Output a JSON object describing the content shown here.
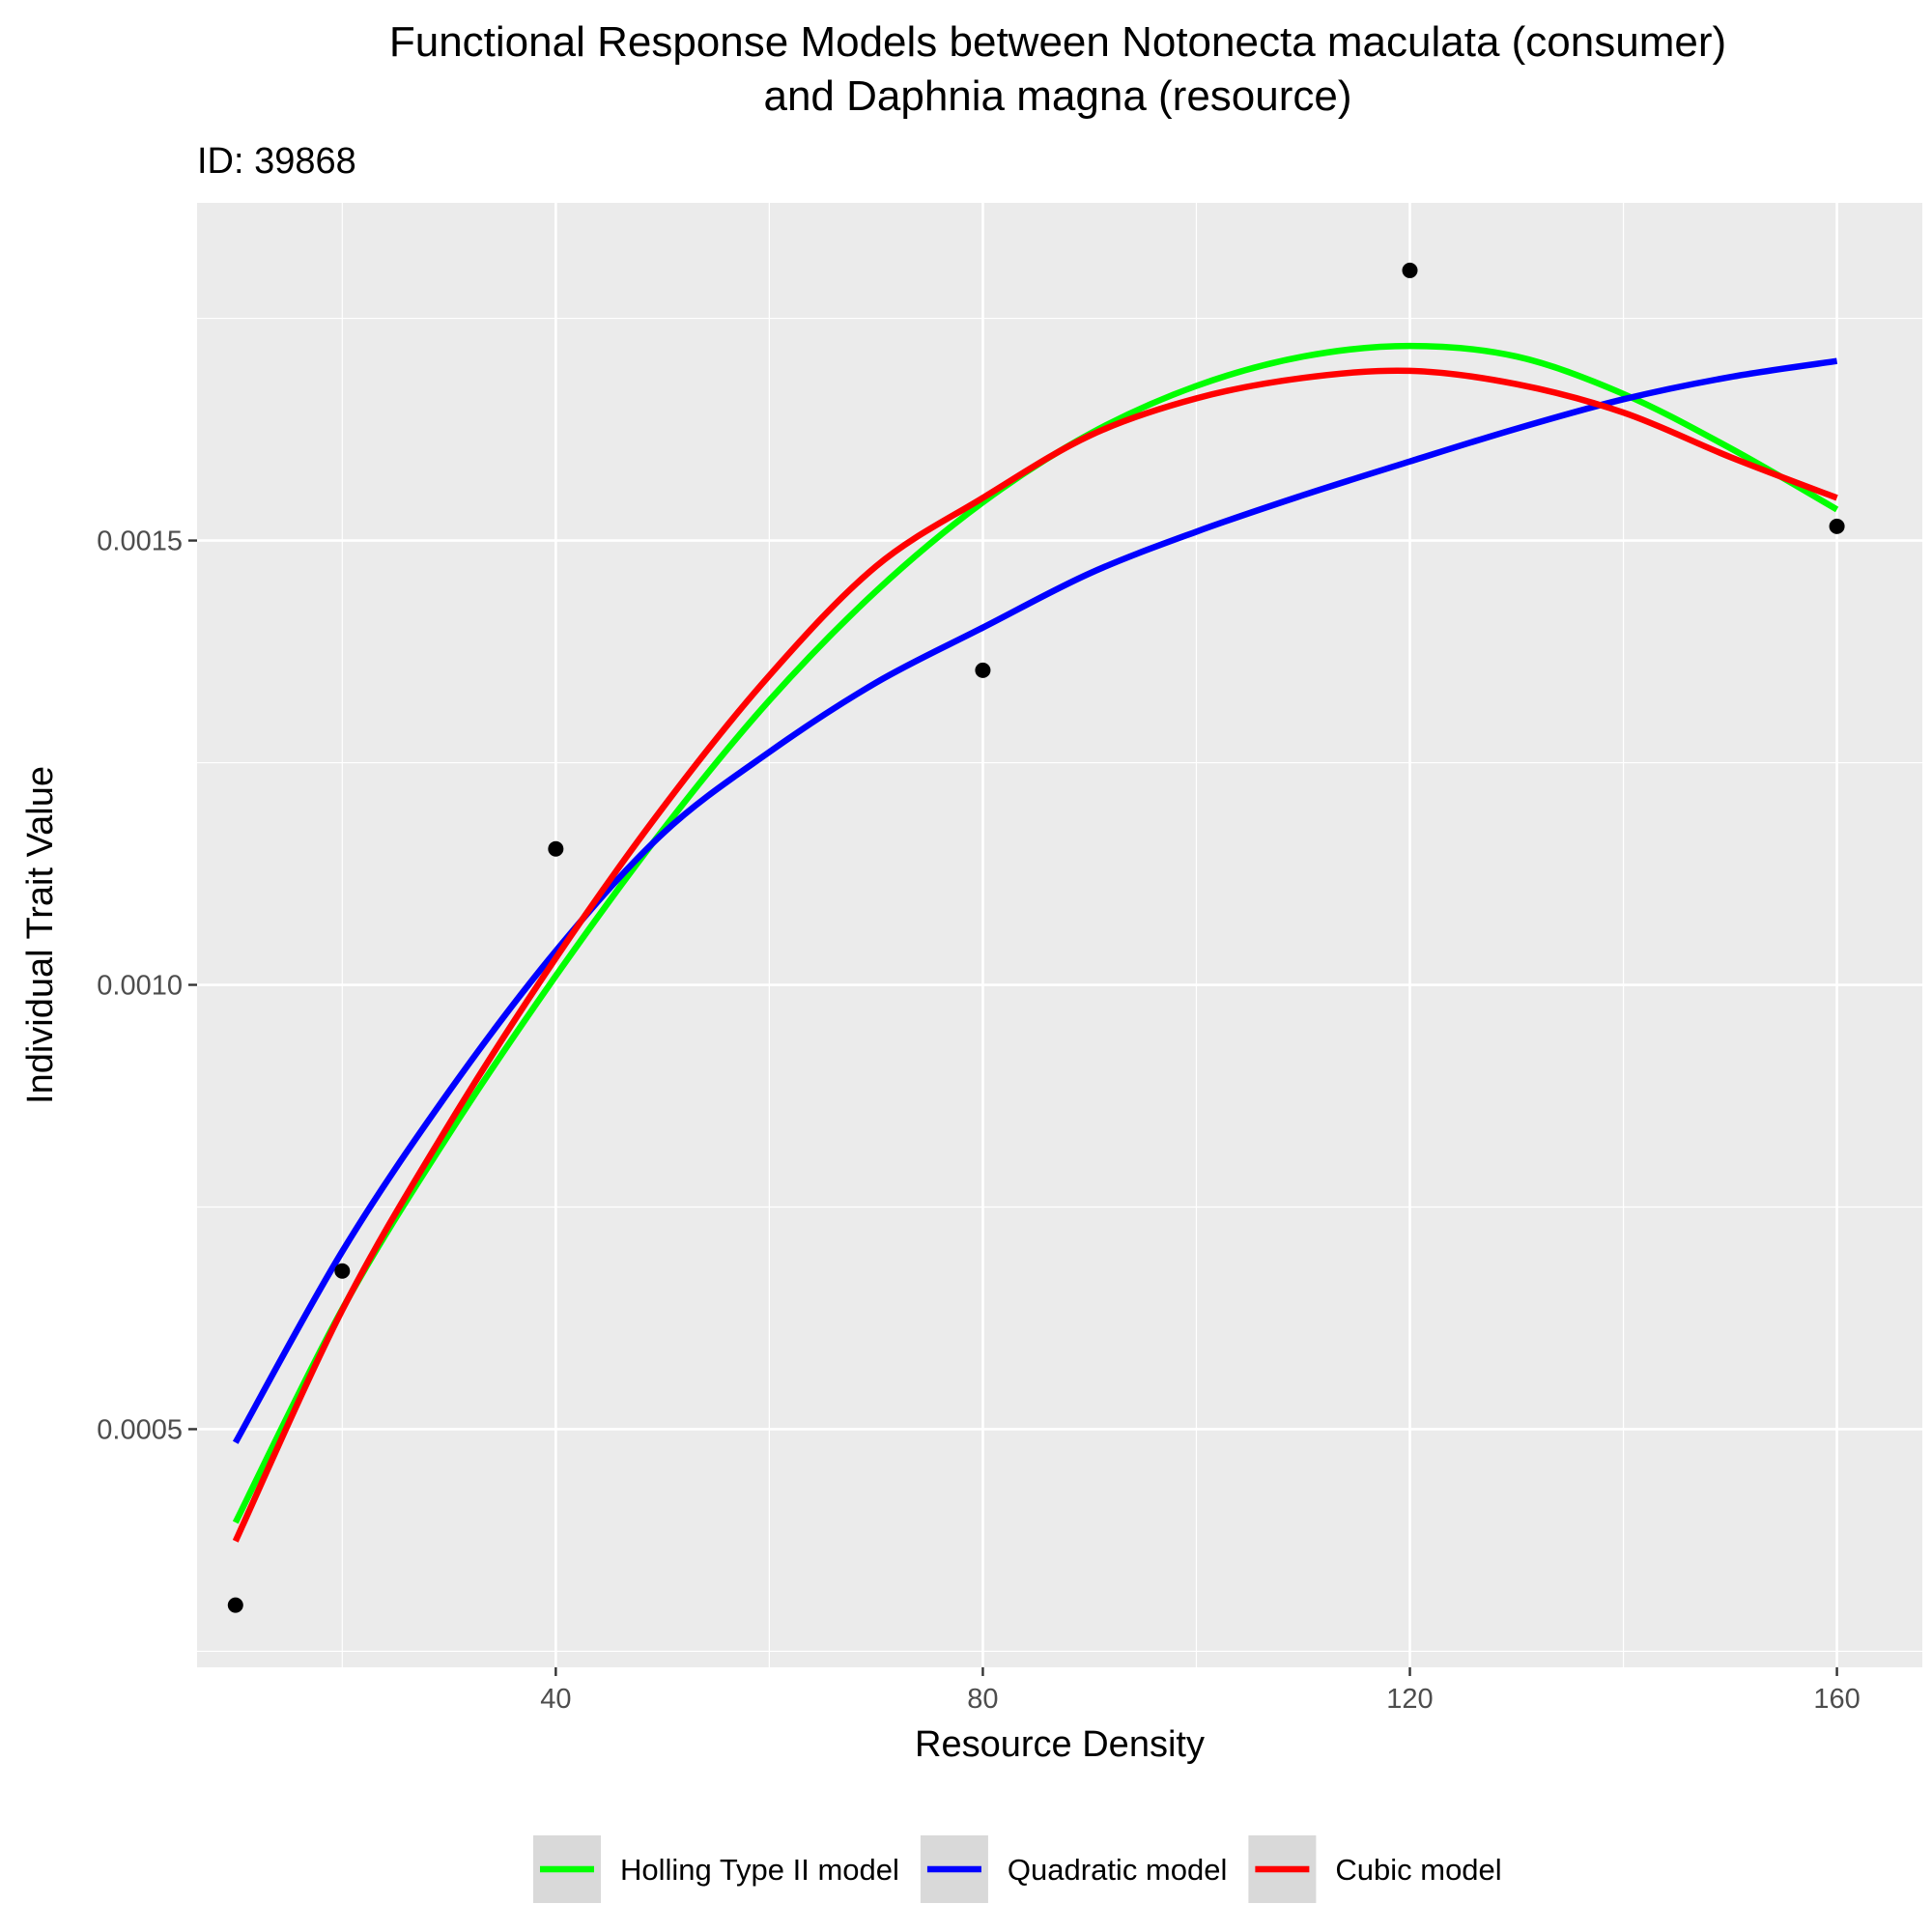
{
  "chart_data": {
    "type": "line",
    "title_lines": [
      "Functional Response Models between Notonecta maculata (consumer)",
      "and Daphnia magna (resource)"
    ],
    "subtitle": "ID: 39868",
    "xlabel": "Resource Density",
    "ylabel": "Individual Trait Value",
    "xlim": [
      6.4,
      168
    ],
    "ylim": [
      0.000232,
      0.00188
    ],
    "x_ticks": [
      40,
      80,
      120,
      160
    ],
    "x_tick_labels": [
      "40",
      "80",
      "120",
      "160"
    ],
    "y_ticks": [
      0.0005,
      0.001,
      0.0015
    ],
    "y_tick_labels": [
      "0.0005",
      "0.0010",
      "0.0015"
    ],
    "grid": true,
    "legend_position": "bottom",
    "points": {
      "x": [
        10,
        20,
        40,
        80,
        120,
        160
      ],
      "y": [
        0.000302,
        0.000678,
        0.001153,
        0.001354,
        0.001804,
        0.001516
      ]
    },
    "series": [
      {
        "name": "Holling Type II model",
        "color": "#00ff00",
        "x": [
          10,
          20,
          30,
          40,
          50,
          60,
          70,
          80,
          90,
          100,
          110,
          120,
          130,
          140,
          150,
          160
        ],
        "y": [
          0.000395,
          0.000635,
          0.000832,
          0.00101,
          0.001174,
          0.00132,
          0.001443,
          0.001543,
          0.00162,
          0.001674,
          0.001707,
          0.001719,
          0.001707,
          0.001665,
          0.001604,
          0.001535
        ]
      },
      {
        "name": "Quadratic model",
        "color": "#0000ff",
        "x": [
          10,
          20,
          30,
          40,
          50,
          60,
          70,
          80,
          90,
          100,
          110,
          120,
          130,
          140,
          150,
          160
        ],
        "y": [
          0.000485,
          0.0007,
          0.00088,
          0.001038,
          0.00117,
          0.001262,
          0.00134,
          0.001402,
          0.001463,
          0.00151,
          0.001551,
          0.001589,
          0.001626,
          0.001659,
          0.001684,
          0.001702
        ]
      },
      {
        "name": "Cubic model",
        "color": "#ff0000",
        "x": [
          10,
          20,
          30,
          40,
          50,
          60,
          70,
          80,
          90,
          100,
          110,
          120,
          130,
          140,
          150,
          160
        ],
        "y": [
          0.000374,
          0.000634,
          0.000843,
          0.00103,
          0.001199,
          0.001348,
          0.001471,
          0.001548,
          0.001618,
          0.00166,
          0.001683,
          0.001691,
          0.001676,
          0.001644,
          0.001594,
          0.001548
        ]
      }
    ]
  }
}
